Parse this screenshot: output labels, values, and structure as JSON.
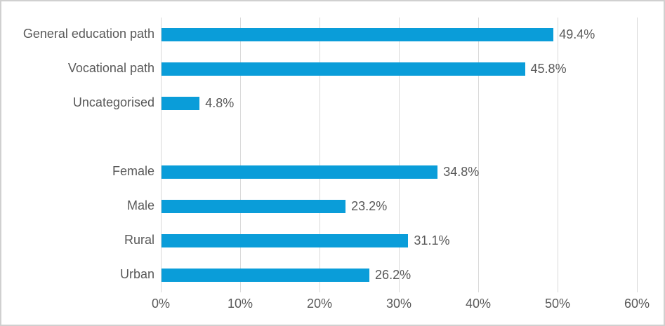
{
  "chart_data": {
    "type": "bar",
    "orientation": "horizontal",
    "title": "",
    "xlabel": "",
    "ylabel": "",
    "categories": [
      "General education path",
      "Vocational path",
      "Uncategorised",
      "",
      "Female",
      "Male",
      "Rural",
      "Urban"
    ],
    "values": [
      49.4,
      45.8,
      4.8,
      null,
      34.8,
      23.2,
      31.1,
      26.2
    ],
    "value_labels": [
      "49.4%",
      "45.8%",
      "4.8%",
      "",
      "34.8%",
      "23.2%",
      "31.1%",
      "26.2%"
    ],
    "x_ticks": [
      "0%",
      "10%",
      "20%",
      "30%",
      "40%",
      "50%",
      "60%"
    ],
    "xlim": [
      0,
      60
    ],
    "grid": "vertical",
    "legend": "none",
    "bar_color": "#0a9dd9",
    "gridline_color": "#d9d9d9",
    "axis_line_color": "#d9d9d9",
    "text_color": "#595959",
    "frame_border_color": "#d0d0d0"
  }
}
